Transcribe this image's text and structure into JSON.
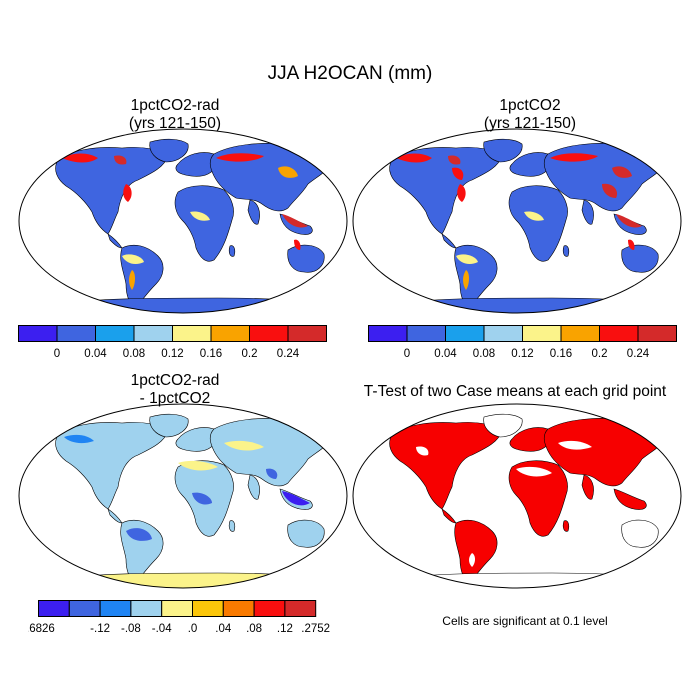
{
  "title": "JJA H2OCAN (mm)",
  "panels": [
    {
      "title_line1": "1pctCO2-rad",
      "title_line2": "(yrs 121-150)"
    },
    {
      "title_line1": "1pctCO2",
      "title_line2": "(yrs 121-150)"
    },
    {
      "title_line1": "1pctCO2-rad",
      "title_line2": "- 1pctCO2"
    },
    {
      "title_line1": "T-Test of two Case means at each grid point"
    }
  ],
  "colorbar_abs": {
    "colors": [
      "#3c1ff0",
      "#3f65e0",
      "#1aa0ec",
      "#9fd2ee",
      "#fbf38a",
      "#f9a300",
      "#f90f0f",
      "#d42a2a"
    ],
    "labels": [
      "0",
      "0.04",
      "0.08",
      "0.12",
      "0.16",
      "0.2",
      "0.24"
    ]
  },
  "colorbar_diff": {
    "colors": [
      "#3c1ff0",
      "#3f65e0",
      "#1f84f3",
      "#9fd2ee",
      "#fbf38a",
      "#fbc60a",
      "#f97a00",
      "#f90f0f",
      "#d42a2a"
    ],
    "labels": [
      "-.6826",
      "-.12",
      "-.08",
      "-.04",
      ".0",
      ".04",
      ".08",
      ".12",
      ".2752"
    ]
  },
  "significance_color": "#f70000",
  "note": "Cells are significant at 0.1 level"
}
